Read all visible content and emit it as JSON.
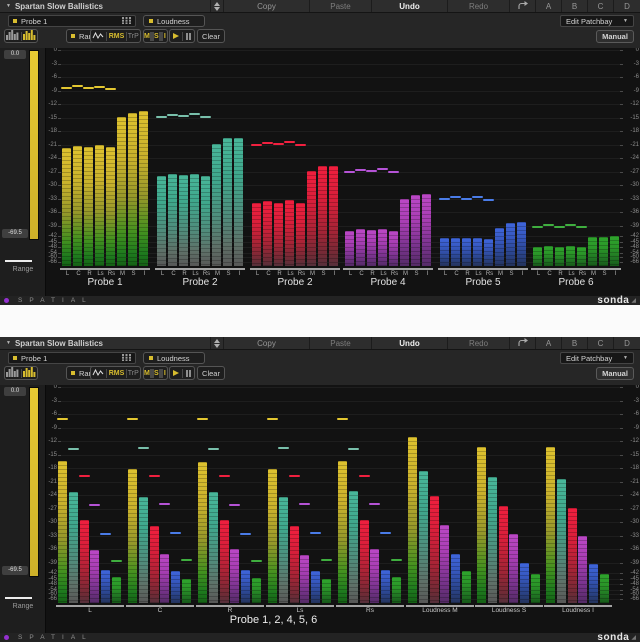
{
  "header": {
    "title": "Spartan Slow Ballistics",
    "copy": "Copy",
    "paste": "Paste",
    "undo": "Undo",
    "redo": "Redo",
    "ab": [
      "A",
      "B",
      "C",
      "D"
    ],
    "probe_select": "Probe 1",
    "loudness": "Loudness",
    "range": "Range",
    "rms": "RMS",
    "trp": "TrP",
    "msi": [
      "M",
      "S",
      "I"
    ],
    "clear": "Clear",
    "edit_patchbay": "Edit Patchbay",
    "manual": "Manual"
  },
  "range_control": {
    "max_db": "0.0",
    "min_db": "-69.5",
    "label": "Range"
  },
  "scale_db": [
    0,
    -3,
    -6,
    -9,
    -12,
    -15,
    -18,
    -21,
    -24,
    -27,
    -30,
    -33,
    -36,
    -39,
    -42,
    -45,
    -48,
    -54,
    -60,
    -66
  ],
  "footer": {
    "brand": "SPATIAL",
    "logo": "sonda"
  },
  "probe_colors": {
    "yellow": "#d8bd2f",
    "teal": "#45b095",
    "red": "#ee1e3e",
    "magenta": "#b847c2",
    "blue": "#3c63d8",
    "green": "#2da32b"
  },
  "chart_data": [
    {
      "type": "bar",
      "panel": "top",
      "unit": "dB",
      "ylim": [
        0,
        -66
      ],
      "description": "Per-probe meters: channels L C R Ls Rs with peak-hold dashes, plus loudness M S I",
      "groups": [
        {
          "name": "Probe 1",
          "color": "yellow",
          "channels": [
            "L",
            "C",
            "R",
            "Ls",
            "Rs",
            "M",
            "S",
            "I"
          ],
          "values_db": [
            -21.7,
            -21.2,
            -21.5,
            -21.0,
            -21.6,
            -14.9,
            -14.0,
            -13.5
          ],
          "peaks_db": [
            -8.3,
            -7.8,
            -8.2,
            -7.9,
            -8.5
          ]
        },
        {
          "name": "Probe 2",
          "color": "teal",
          "channels": [
            "L",
            "C",
            "R",
            "Ls",
            "Rs",
            "M",
            "S",
            "I"
          ],
          "values_db": [
            -28.0,
            -27.5,
            -27.8,
            -27.4,
            -28.0,
            -20.8,
            -19.6,
            -19.5
          ],
          "peaks_db": [
            -14.6,
            -14.1,
            -14.4,
            -14.0,
            -14.7
          ]
        },
        {
          "name": "Probe 2",
          "color": "red",
          "channels": [
            "L",
            "C",
            "R",
            "Ls",
            "Rs",
            "M",
            "S",
            "I"
          ],
          "values_db": [
            -34.0,
            -33.5,
            -33.8,
            -33.3,
            -34.0,
            -26.8,
            -25.8,
            -25.6
          ],
          "peaks_db": [
            -20.8,
            -20.3,
            -20.6,
            -20.2,
            -20.9
          ]
        },
        {
          "name": "Probe 4",
          "color": "magenta",
          "channels": [
            "L",
            "C",
            "R",
            "Ls",
            "Rs",
            "M",
            "S",
            "I"
          ],
          "values_db": [
            -40.5,
            -40.0,
            -40.3,
            -39.9,
            -40.6,
            -33.1,
            -32.1,
            -31.9
          ],
          "peaks_db": [
            -26.8,
            -26.3,
            -26.6,
            -26.2,
            -26.9
          ]
        },
        {
          "name": "Probe 5",
          "color": "blue",
          "channels": [
            "L",
            "C",
            "R",
            "Ls",
            "Rs",
            "M",
            "S",
            "I"
          ],
          "values_db": [
            -43.2,
            -42.9,
            -43.1,
            -42.8,
            -43.3,
            -39.6,
            -38.4,
            -38.2
          ],
          "peaks_db": [
            -32.9,
            -32.4,
            -32.7,
            -32.3,
            -33.0
          ]
        },
        {
          "name": "Probe 6",
          "color": "green",
          "channels": [
            "L",
            "C",
            "R",
            "Ls",
            "Rs",
            "M",
            "S",
            "I"
          ],
          "values_db": [
            -47.8,
            -47.4,
            -47.7,
            -47.3,
            -47.9,
            -42.7,
            -42.3,
            -42.1
          ],
          "peaks_db": [
            -39.0,
            -38.6,
            -38.9,
            -38.5,
            -39.1
          ]
        }
      ]
    },
    {
      "type": "bar",
      "panel": "bottom",
      "unit": "dB",
      "ylim": [
        0,
        -66
      ],
      "caption": "Probe 1, 2, 4, 5, 6",
      "series_probes": [
        "Probe 1",
        "Probe 2",
        "Probe 2",
        "Probe 4",
        "Probe 5",
        "Probe 6"
      ],
      "series_colors": [
        "yellow",
        "teal",
        "red",
        "magenta",
        "blue",
        "green"
      ],
      "groups": [
        {
          "name": "L",
          "values_db": [
            -16.5,
            -23.2,
            -29.4,
            -36.1,
            -41.2,
            -44.2
          ],
          "peaks_db": [
            -6.9,
            -13.5,
            -19.6,
            -25.9,
            -32.3,
            -38.3
          ]
        },
        {
          "name": "C",
          "values_db": [
            -18.1,
            -24.4,
            -30.7,
            -37.1,
            -41.3,
            -44.8
          ],
          "peaks_db": [
            -6.8,
            -13.4,
            -19.5,
            -25.8,
            -32.2,
            -38.2
          ]
        },
        {
          "name": "R",
          "values_db": [
            -16.6,
            -23.3,
            -29.5,
            -36.0,
            -41.2,
            -44.3
          ],
          "peaks_db": [
            -6.9,
            -13.5,
            -19.6,
            -25.9,
            -32.3,
            -38.3
          ]
        },
        {
          "name": "Ls",
          "values_db": [
            -18.2,
            -24.4,
            -30.8,
            -37.2,
            -41.3,
            -44.9
          ],
          "peaks_db": [
            -6.8,
            -13.4,
            -19.4,
            -25.7,
            -32.1,
            -38.1
          ]
        },
        {
          "name": "Rs",
          "values_db": [
            -16.5,
            -23.1,
            -29.4,
            -36.0,
            -41.1,
            -44.0
          ],
          "peaks_db": [
            -6.9,
            -13.5,
            -19.6,
            -25.8,
            -32.2,
            -38.2
          ]
        },
        {
          "name": "Loudness M",
          "values_db": [
            -11.0,
            -18.6,
            -24.2,
            -30.5,
            -37.0,
            -41.5
          ]
        },
        {
          "name": "Loudness S",
          "values_db": [
            -13.3,
            -19.9,
            -26.3,
            -32.6,
            -38.9,
            -42.6
          ]
        },
        {
          "name": "Loudness I",
          "values_db": [
            -13.3,
            -20.3,
            -26.9,
            -33.0,
            -39.4,
            -42.7
          ]
        }
      ]
    }
  ]
}
